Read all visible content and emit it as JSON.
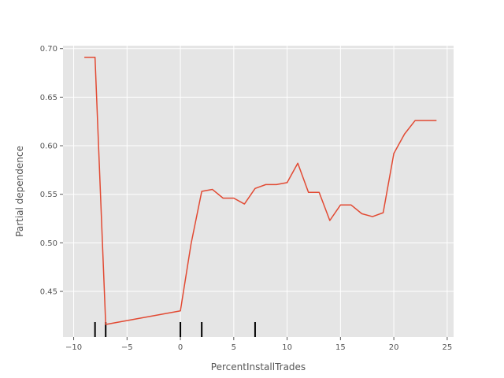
{
  "chart_data": {
    "type": "line",
    "title": "",
    "xlabel": "PercentInstallTrades",
    "ylabel": "Partial dependence",
    "xlim": [
      -11.0,
      25.6
    ],
    "ylim": [
      0.403,
      0.703
    ],
    "grid": true,
    "x_ticks": [
      -10,
      -5,
      0,
      5,
      10,
      15,
      20,
      25
    ],
    "x_tick_labels": [
      "−10",
      "−5",
      "0",
      "5",
      "10",
      "15",
      "20",
      "25"
    ],
    "y_ticks": [
      0.45,
      0.5,
      0.55,
      0.6,
      0.65,
      0.7
    ],
    "y_tick_labels": [
      "0.45",
      "0.50",
      "0.55",
      "0.60",
      "0.65",
      "0.70"
    ],
    "series": [
      {
        "x": [
          -9,
          -8,
          -7,
          0,
          1,
          2,
          3,
          4,
          5,
          6,
          7,
          8,
          9,
          10,
          11,
          12,
          13,
          14,
          15,
          16,
          17,
          18,
          19,
          20,
          21,
          22,
          23,
          24
        ],
        "y": [
          0.691,
          0.691,
          0.416,
          0.43,
          0.499,
          0.553,
          0.555,
          0.546,
          0.546,
          0.54,
          0.556,
          0.56,
          0.56,
          0.562,
          0.582,
          0.552,
          0.552,
          0.523,
          0.539,
          0.539,
          0.53,
          0.527,
          0.531,
          0.592,
          0.612,
          0.626,
          0.626,
          0.626
        ]
      }
    ],
    "rug_x": [
      -8,
      -7,
      0,
      2,
      7
    ],
    "colors": {
      "line": "#e24a33",
      "plot_background": "#e5e5e5",
      "grid": "#ffffff",
      "rug": "#000000",
      "text": "#555555"
    }
  }
}
